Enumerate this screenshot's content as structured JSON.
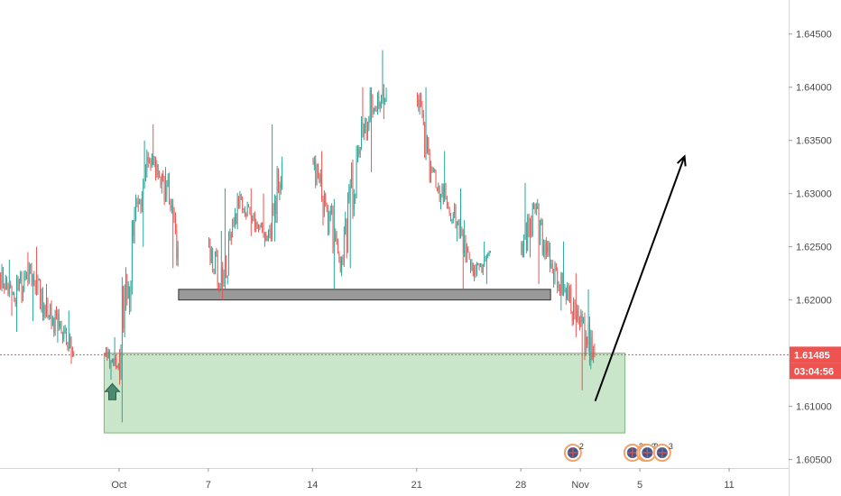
{
  "chart_data": {
    "type": "candlestick",
    "y_ticks": [
      "1.64500",
      "1.64000",
      "1.63500",
      "1.63000",
      "1.62500",
      "1.62000",
      "1.61000",
      "1.60500"
    ],
    "x_ticks": [
      {
        "label": "Oct",
        "date": "2019-10-01"
      },
      {
        "label": "7",
        "date": "2019-10-07"
      },
      {
        "label": "14",
        "date": "2019-10-14"
      },
      {
        "label": "21",
        "date": "2019-10-21"
      },
      {
        "label": "28",
        "date": "2019-10-28"
      },
      {
        "label": "Nov",
        "date": "2019-11-01"
      },
      {
        "label": "5",
        "date": "2019-11-05"
      },
      {
        "label": "11",
        "date": "2019-11-11"
      }
    ],
    "ylim": [
      1.6042,
      1.6482
    ],
    "xlim": [
      "2019-09-23",
      "2019-11-15"
    ],
    "current_price": {
      "label": "1.61485",
      "value": 1.61485,
      "color": "#ef5350"
    },
    "countdown": {
      "label": "03:04:56",
      "color": "#ef5350"
    },
    "up_color": "#26a69a",
    "down_color": "#ef5350",
    "gridlines": false,
    "candles_ohlc": [
      [
        "2019-09-23",
        1.6225,
        1.6238,
        1.6185,
        1.62
      ],
      [
        "2019-09-24",
        1.62,
        1.6245,
        1.617,
        1.623
      ],
      [
        "2019-09-25",
        1.623,
        1.625,
        1.618,
        1.6195
      ],
      [
        "2019-09-26",
        1.6195,
        1.6215,
        1.616,
        1.6175
      ],
      [
        "2019-09-27",
        1.6175,
        1.619,
        1.614,
        1.615
      ],
      [
        "2019-09-30",
        1.615,
        1.6165,
        1.6125,
        1.614
      ],
      [
        "2019-10-01",
        1.614,
        1.6275,
        1.6085,
        1.626
      ],
      [
        "2019-10-02",
        1.626,
        1.635,
        1.625,
        1.633
      ],
      [
        "2019-10-03",
        1.633,
        1.6365,
        1.63,
        1.6315
      ],
      [
        "2019-10-04",
        1.6315,
        1.6325,
        1.623,
        1.625
      ],
      [
        "2019-10-07",
        1.625,
        1.6265,
        1.62,
        1.6215
      ],
      [
        "2019-10-08",
        1.6215,
        1.6305,
        1.621,
        1.6295
      ],
      [
        "2019-10-09",
        1.6295,
        1.6305,
        1.626,
        1.6275
      ],
      [
        "2019-10-10",
        1.6275,
        1.63,
        1.625,
        1.626
      ],
      [
        "2019-10-11",
        1.626,
        1.6365,
        1.6255,
        1.633
      ],
      [
        "2019-10-14",
        1.633,
        1.634,
        1.627,
        1.6285
      ],
      [
        "2019-10-15",
        1.6285,
        1.6295,
        1.621,
        1.624
      ],
      [
        "2019-10-16",
        1.624,
        1.6345,
        1.623,
        1.633
      ],
      [
        "2019-10-17",
        1.633,
        1.64,
        1.632,
        1.639
      ],
      [
        "2019-10-18",
        1.639,
        1.6435,
        1.637,
        1.6395
      ],
      [
        "2019-10-21",
        1.6395,
        1.64,
        1.631,
        1.6325
      ],
      [
        "2019-10-22",
        1.6325,
        1.634,
        1.6285,
        1.6295
      ],
      [
        "2019-10-23",
        1.6295,
        1.6305,
        1.6255,
        1.6265
      ],
      [
        "2019-10-24",
        1.6265,
        1.6275,
        1.621,
        1.6225
      ],
      [
        "2019-10-25",
        1.6225,
        1.6255,
        1.6215,
        1.6245
      ],
      [
        "2019-10-28",
        1.6245,
        1.631,
        1.624,
        1.6285
      ],
      [
        "2019-10-29",
        1.6285,
        1.6295,
        1.6215,
        1.623
      ],
      [
        "2019-10-30",
        1.623,
        1.6255,
        1.619,
        1.621
      ],
      [
        "2019-10-31",
        1.621,
        1.6225,
        1.6165,
        1.6175
      ],
      [
        "2019-11-01",
        1.6175,
        1.621,
        1.6115,
        1.6148
      ]
    ],
    "annotations": {
      "resistance_zone": {
        "top": 1.621,
        "bottom": 1.62,
        "start": "2019-10-05",
        "end": "2019-10-30",
        "color": "#999999"
      },
      "demand_zone": {
        "top": 1.615,
        "bottom": 1.6075,
        "start": "2019-09-30",
        "end": "2019-11-04",
        "color": "#a5d6a7"
      },
      "up_arrow_marker": {
        "date": "2019-09-30",
        "price": 1.6135,
        "color": "#4a8a6e"
      },
      "trend_arrow": {
        "from": [
          "2019-11-02",
          1.6105
        ],
        "to": [
          "2019-11-08",
          1.6335
        ],
        "color": "#000000"
      }
    },
    "events": [
      {
        "date": "2019-10-31",
        "count": "2"
      },
      {
        "date": "2019-11-04",
        "count": "2"
      },
      {
        "date": "2019-11-04",
        "count": "2"
      },
      {
        "date": "2019-11-05",
        "count": "2"
      },
      {
        "date": "2019-11-06",
        "count": "3"
      }
    ]
  }
}
